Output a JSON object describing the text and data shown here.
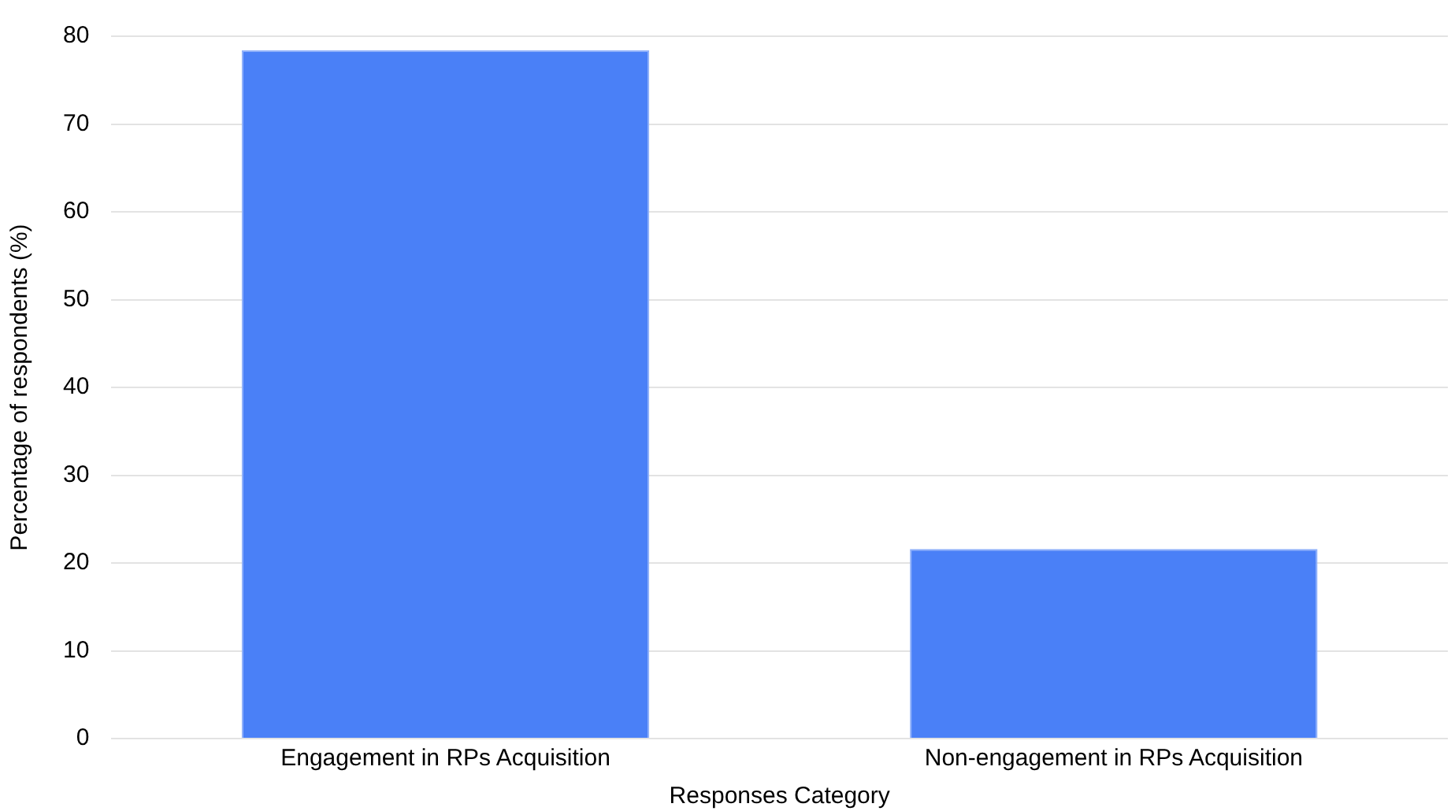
{
  "chart_data": {
    "type": "bar",
    "xlabel": "Responses Category",
    "ylabel": "Percentage of respondents (%)",
    "categories": [
      "Engagement in RPs Acquisition",
      "Non-engagement in RPs Acquisition"
    ],
    "values": [
      78.4,
      21.6
    ],
    "color": "#4a80f7",
    "ylim": [
      0,
      80
    ],
    "yticks": [
      0,
      10,
      20,
      30,
      40,
      50,
      60,
      70,
      80
    ],
    "grid": "y",
    "legend": false
  }
}
